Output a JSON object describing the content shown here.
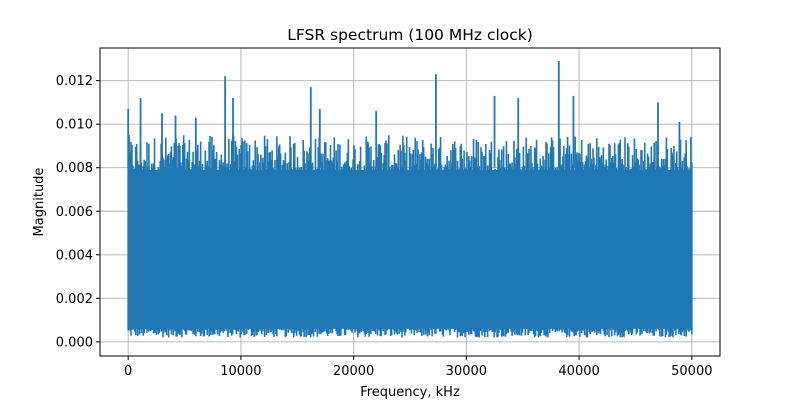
{
  "chart_data": {
    "type": "line",
    "title": "LFSR spectrum (100 MHz clock)",
    "xlabel": "Frequency, kHz",
    "ylabel": "Magnitude",
    "xlim": [
      -2500,
      52500
    ],
    "ylim": [
      -0.00065,
      0.0135
    ],
    "x_ticks": [
      0,
      10000,
      20000,
      30000,
      40000,
      50000
    ],
    "x_tick_labels": [
      "0",
      "10000",
      "20000",
      "30000",
      "40000",
      "50000"
    ],
    "y_ticks": [
      0,
      0.002,
      0.004,
      0.006,
      0.008,
      0.01,
      0.012
    ],
    "y_tick_labels": [
      "0.000",
      "0.002",
      "0.004",
      "0.006",
      "0.008",
      "0.010",
      "0.012"
    ],
    "grid": true,
    "legend": false,
    "series": [
      {
        "color": "#1f77b4",
        "x_range": [
          0,
          50000
        ],
        "sample_count": 600,
        "envelope_min_range": [
          0.0002,
          0.0007
        ],
        "envelope_typical_max": [
          0.0078,
          0.0095
        ],
        "peaks": [
          {
            "x": 0,
            "y": 0.0107
          },
          {
            "x": 1100,
            "y": 0.0112
          },
          {
            "x": 3000,
            "y": 0.0105
          },
          {
            "x": 4200,
            "y": 0.0104
          },
          {
            "x": 6000,
            "y": 0.0103
          },
          {
            "x": 8600,
            "y": 0.0122
          },
          {
            "x": 9300,
            "y": 0.0112
          },
          {
            "x": 16200,
            "y": 0.0117
          },
          {
            "x": 17000,
            "y": 0.0107
          },
          {
            "x": 22000,
            "y": 0.0106
          },
          {
            "x": 27300,
            "y": 0.0123
          },
          {
            "x": 32500,
            "y": 0.0113
          },
          {
            "x": 34600,
            "y": 0.0112
          },
          {
            "x": 38200,
            "y": 0.0129
          },
          {
            "x": 39500,
            "y": 0.0113
          },
          {
            "x": 47000,
            "y": 0.011
          },
          {
            "x": 48900,
            "y": 0.0101
          }
        ]
      }
    ]
  }
}
